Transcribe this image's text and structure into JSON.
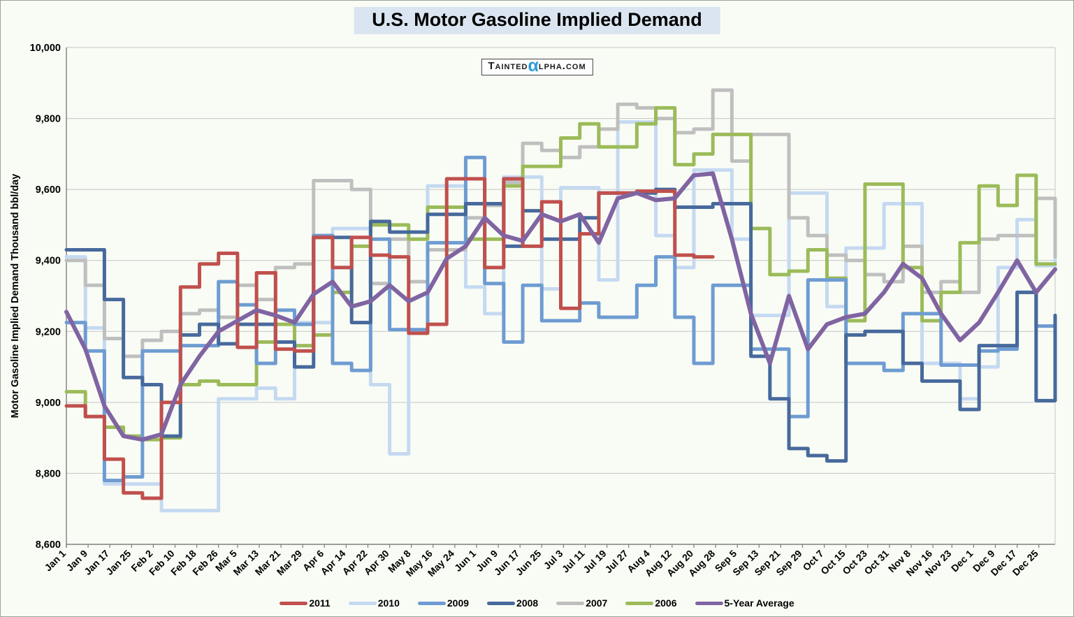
{
  "page": {
    "background": "#f9fcf5",
    "frame_border": "#9aa39a"
  },
  "title": "U.S. Motor Gasoline Implied Demand",
  "title_bg": "#dbe5f1",
  "watermark": {
    "pre": "Tainted",
    "alpha": "α",
    "post": "lpha.com",
    "alpha_color": "#2e9bd8"
  },
  "chart_data": {
    "type": "line",
    "title": "U.S. Motor Gasoline Implied Demand",
    "ylabel": "Motor Gasoline Implied Demand Thousand bbl/day",
    "ylim": [
      8600,
      10000
    ],
    "ytick_interval": 200,
    "ytick_labels": [
      "8,600",
      "8,800",
      "9,000",
      "9,200",
      "9,400",
      "9,600",
      "9,800",
      "10,000"
    ],
    "grid": true,
    "grid_color": "#c6c6c6",
    "axis_color": "#7f7f7f",
    "legend_position": "bottom",
    "x_weeks": 53,
    "x_days_span": 364,
    "x_tick_labels": [
      "Jan 1",
      "Jan 9",
      "Jan 17",
      "Jan 25",
      "Feb 2",
      "Feb 10",
      "Feb 18",
      "Feb 26",
      "Mar 5",
      "Mar 13",
      "Mar 21",
      "Mar 29",
      "Apr 6",
      "Apr 14",
      "Apr 22",
      "Apr 30",
      "May 8",
      "May 16",
      "May 24",
      "Jun 1",
      "Jun 9",
      "Jun 17",
      "Jun 25",
      "Jul 3",
      "Jul 11",
      "Jul 19",
      "Jul 27",
      "Aug 4",
      "Aug 12",
      "Aug 20",
      "Aug 28",
      "Sep 5",
      "Sep 13",
      "Sep 21",
      "Sep 29",
      "Oct 7",
      "Oct 15",
      "Oct 23",
      "Oct 31",
      "Nov 8",
      "Nov 16",
      "Nov 23",
      "Dec 1",
      "Dec 9",
      "Dec 17",
      "Dec 25"
    ],
    "x_tick_days": [
      0,
      8,
      16,
      24,
      32,
      40,
      48,
      56,
      63,
      71,
      79,
      87,
      95,
      103,
      111,
      119,
      127,
      135,
      143,
      151,
      159,
      167,
      175,
      183,
      191,
      199,
      207,
      215,
      223,
      231,
      239,
      247,
      255,
      263,
      271,
      279,
      287,
      295,
      303,
      311,
      319,
      326,
      334,
      342,
      350,
      358
    ],
    "series": [
      {
        "name": "2011",
        "color": "#c0504d",
        "style": "step",
        "values": [
          8990,
          8960,
          8840,
          8745,
          8730,
          9000,
          9325,
          9390,
          9420,
          9155,
          9365,
          9150,
          9145,
          9465,
          9380,
          9465,
          9415,
          9410,
          9195,
          9220,
          9630,
          9630,
          9380,
          9630,
          9440,
          9565,
          9265,
          9475,
          9590,
          9590,
          9595,
          9595,
          9415,
          9410
        ]
      },
      {
        "name": "2010",
        "color": "#c5d9f1",
        "style": "step",
        "values": [
          9410,
          9210,
          8770,
          8770,
          8770,
          8695,
          8695,
          8695,
          9010,
          9010,
          9040,
          9010,
          9225,
          9225,
          9490,
          9490,
          9050,
          8855,
          9460,
          9610,
          9610,
          9325,
          9250,
          9635,
          9635,
          9320,
          9605,
          9605,
          9345,
          9790,
          9790,
          9470,
          9380,
          9655,
          9655,
          9460,
          9245,
          9245,
          9590,
          9590,
          9270,
          9435,
          9435,
          9560,
          9560,
          9110,
          9110,
          9010,
          9100,
          9380,
          9515,
          9385,
          9570
        ]
      },
      {
        "name": "2009",
        "color": "#6e9cd2",
        "style": "step",
        "values": [
          9225,
          9145,
          8780,
          8790,
          9145,
          9145,
          9160,
          9160,
          9340,
          9275,
          9110,
          9260,
          9220,
          9470,
          9110,
          9090,
          9460,
          9205,
          9205,
          9450,
          9450,
          9690,
          9335,
          9170,
          9330,
          9230,
          9230,
          9280,
          9240,
          9240,
          9330,
          9410,
          9240,
          9110,
          9330,
          9330,
          9150,
          9150,
          8960,
          9345,
          9345,
          9110,
          9110,
          9090,
          9250,
          9250,
          9105,
          9105,
          9145,
          9150,
          9310,
          9215,
          9245
        ]
      },
      {
        "name": "2008",
        "color": "#47699c",
        "style": "step",
        "values": [
          9430,
          9430,
          9290,
          9070,
          9050,
          8905,
          9190,
          9220,
          9165,
          9220,
          9220,
          9170,
          9100,
          9465,
          9465,
          9225,
          9510,
          9480,
          9480,
          9530,
          9530,
          9560,
          9560,
          9440,
          9540,
          9460,
          9460,
          9520,
          9590,
          9590,
          9590,
          9600,
          9550,
          9550,
          9560,
          9560,
          9130,
          9010,
          8870,
          8850,
          8835,
          9190,
          9200,
          9200,
          9110,
          9060,
          9060,
          8980,
          9160,
          9160,
          9310,
          9005,
          9245
        ]
      },
      {
        "name": "2007",
        "color": "#bfbfbf",
        "style": "step",
        "values": [
          9400,
          9330,
          9180,
          9130,
          9175,
          9200,
          9250,
          9260,
          9240,
          9330,
          9290,
          9380,
          9390,
          9625,
          9625,
          9600,
          9335,
          9460,
          9340,
          9430,
          9430,
          9520,
          9555,
          9620,
          9730,
          9710,
          9690,
          9720,
          9770,
          9840,
          9830,
          9800,
          9760,
          9770,
          9880,
          9680,
          9755,
          9755,
          9520,
          9470,
          9415,
          9400,
          9360,
          9340,
          9440,
          9310,
          9340,
          9310,
          9460,
          9470,
          9470,
          9575,
          9410
        ]
      },
      {
        "name": "2006",
        "color": "#9bbb59",
        "style": "step",
        "values": [
          9030,
          8960,
          8930,
          8905,
          8895,
          8900,
          9050,
          9060,
          9050,
          9050,
          9170,
          9220,
          9160,
          9190,
          9310,
          9440,
          9500,
          9500,
          9460,
          9550,
          9550,
          9460,
          9460,
          9610,
          9665,
          9665,
          9745,
          9785,
          9720,
          9720,
          9785,
          9830,
          9670,
          9700,
          9755,
          9755,
          9490,
          9360,
          9370,
          9430,
          9350,
          9230,
          9615,
          9615,
          9380,
          9230,
          9310,
          9450,
          9610,
          9555,
          9640,
          9390,
          9390
        ]
      },
      {
        "name": "5-Year Average",
        "color": "#8064a2",
        "style": "line",
        "values": [
          9255,
          9150,
          8990,
          8905,
          8895,
          8910,
          9050,
          9130,
          9200,
          9230,
          9260,
          9245,
          9225,
          9305,
          9340,
          9270,
          9285,
          9330,
          9285,
          9310,
          9405,
          9440,
          9520,
          9470,
          9455,
          9530,
          9510,
          9530,
          9450,
          9575,
          9590,
          9570,
          9575,
          9640,
          9645,
          9460,
          9250,
          9110,
          9300,
          9150,
          9220,
          9240,
          9250,
          9310,
          9390,
          9350,
          9250,
          9175,
          9225,
          9310,
          9400,
          9310,
          9375
        ]
      }
    ],
    "draw_order": [
      "2010",
      "2007",
      "2006",
      "2009",
      "2008",
      "2011",
      "5-Year Average"
    ]
  }
}
